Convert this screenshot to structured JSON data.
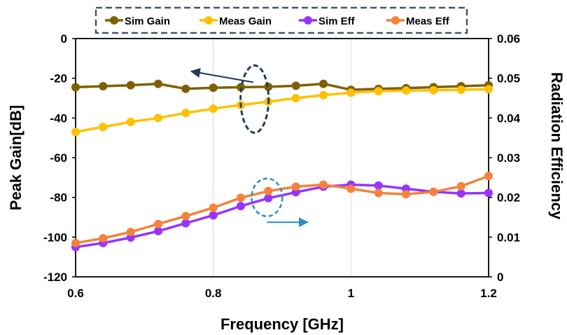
{
  "chart_data": {
    "type": "line",
    "title": "",
    "xlabel": "Frequency [GHz]",
    "ylabel_left": "Peak Gain[dB]",
    "ylabel_right": "Radiation Efficiency",
    "xlim": [
      0.6,
      1.2
    ],
    "ylim_left": [
      -120,
      0
    ],
    "ylim_right": [
      0,
      0.06
    ],
    "x_ticks": [
      0.6,
      0.8,
      1.0,
      1.2
    ],
    "x_tick_labels": [
      "0.6",
      "0.8",
      "1",
      "1.2"
    ],
    "y_left_ticks": [
      0,
      -20,
      -40,
      -60,
      -80,
      -100,
      -120
    ],
    "y_left_tick_labels": [
      "0",
      "-20",
      "-40",
      "-60",
      "-80",
      "-100",
      "-120"
    ],
    "y_right_ticks": [
      0.06,
      0.05,
      0.04,
      0.03,
      0.02,
      0.01,
      0
    ],
    "y_right_tick_labels": [
      "0.06",
      "0.05",
      "0.04",
      "0.03",
      "0.02",
      "0.01",
      "0"
    ],
    "grid": "vertical",
    "legend_position": "top",
    "x": [
      0.6,
      0.64,
      0.68,
      0.72,
      0.76,
      0.8,
      0.84,
      0.88,
      0.92,
      0.96,
      1.0,
      1.04,
      1.08,
      1.12,
      1.16,
      1.2
    ],
    "series": [
      {
        "name": "Sim Gain",
        "axis": "left",
        "color": "#7F6000",
        "values": [
          -24.5,
          -24.0,
          -23.5,
          -22.8,
          -25.3,
          -24.8,
          -24.5,
          -24.3,
          -23.8,
          -22.8,
          -25.8,
          -25.3,
          -25.0,
          -24.5,
          -24.0,
          -23.5
        ]
      },
      {
        "name": "Meas Gain",
        "axis": "left",
        "color": "#FFC000",
        "values": [
          -47.0,
          -44.5,
          -42.0,
          -40.0,
          -37.5,
          -35.3,
          -33.5,
          -31.8,
          -30.0,
          -28.5,
          -27.3,
          -26.5,
          -26.2,
          -26.0,
          -25.8,
          -25.5
        ]
      },
      {
        "name": "Sim Eff",
        "axis": "right",
        "color": "#9933FF",
        "values": [
          0.0075,
          0.0085,
          0.0099,
          0.0115,
          0.0135,
          0.0155,
          0.0178,
          0.0198,
          0.0213,
          0.0227,
          0.0232,
          0.023,
          0.0222,
          0.0214,
          0.021,
          0.0211
        ]
      },
      {
        "name": "Meas Eff",
        "axis": "right",
        "color": "#F4823A",
        "values": [
          0.0085,
          0.0097,
          0.0113,
          0.0133,
          0.0153,
          0.0174,
          0.0199,
          0.0216,
          0.0227,
          0.0232,
          0.0222,
          0.0211,
          0.0208,
          0.0214,
          0.0228,
          0.0254
        ]
      }
    ],
    "annotation_colors": {
      "gain_group": "#1F3864",
      "eff_group": "#2E8BC9"
    }
  }
}
